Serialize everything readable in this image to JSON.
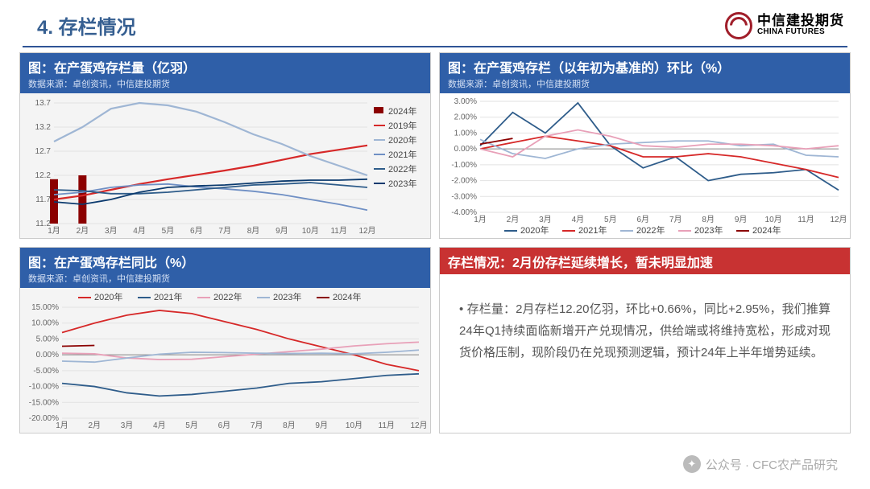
{
  "header": {
    "title": "4. 存栏情况",
    "logo_zh": "中信建投期货",
    "logo_en": "CHINA FUTURES"
  },
  "charts": {
    "tl": {
      "title": "图：在产蛋鸡存栏量（亿羽）",
      "source": "数据来源：卓创资讯，中信建投期货",
      "x_labels": [
        "1月",
        "2月",
        "3月",
        "4月",
        "5月",
        "6月",
        "7月",
        "8月",
        "9月",
        "10月",
        "11月",
        "12月"
      ],
      "y_labels": [
        "11.2",
        "11.7",
        "12.2",
        "12.7",
        "13.2",
        "13.7"
      ],
      "ylim": [
        11.2,
        13.7
      ],
      "legend": [
        {
          "label": "2024年",
          "color": "#8b0000",
          "type": "bar"
        },
        {
          "label": "2019年",
          "color": "#d62828",
          "type": "line"
        },
        {
          "label": "2020年",
          "color": "#9fb6d4",
          "type": "line"
        },
        {
          "label": "2021年",
          "color": "#6f8fc4",
          "type": "line"
        },
        {
          "label": "2022年",
          "color": "#2e5c8a",
          "type": "line"
        },
        {
          "label": "2023年",
          "color": "#0b3a6e",
          "type": "line"
        }
      ],
      "series": {
        "2019": [
          11.7,
          11.78,
          11.9,
          12.02,
          12.12,
          12.21,
          12.3,
          12.4,
          12.52,
          12.64,
          12.73,
          12.82
        ],
        "2020": [
          12.9,
          13.2,
          13.58,
          13.7,
          13.65,
          13.52,
          13.3,
          13.05,
          12.85,
          12.6,
          12.4,
          12.2
        ],
        "2021": [
          11.8,
          11.85,
          11.95,
          12.0,
          12.02,
          11.96,
          11.92,
          11.87,
          11.8,
          11.7,
          11.6,
          11.48
        ],
        "2022": [
          11.9,
          11.88,
          11.82,
          11.82,
          11.85,
          11.9,
          11.95,
          12.0,
          12.02,
          12.05,
          12.0,
          11.95
        ],
        "2023": [
          11.65,
          11.6,
          11.7,
          11.85,
          11.95,
          11.98,
          12.0,
          12.04,
          12.08,
          12.1,
          12.1,
          12.12
        ],
        "2024_bars": [
          12.12,
          12.2
        ]
      },
      "bar_color": "#8b0000",
      "bg_color": "#f4f4f4"
    },
    "tr": {
      "title": "图：在产蛋鸡存栏（以年初为基准的）环比（%）",
      "source": "数据来源：卓创资讯，中信建投期货",
      "x_labels": [
        "1月",
        "2月",
        "3月",
        "4月",
        "5月",
        "6月",
        "7月",
        "8月",
        "9月",
        "10月",
        "11月",
        "12月"
      ],
      "y_labels": [
        "-4.00%",
        "-3.00%",
        "-2.00%",
        "-1.00%",
        "0.00%",
        "1.00%",
        "2.00%",
        "3.00%"
      ],
      "ylim": [
        -4.0,
        3.0
      ],
      "legend": [
        {
          "label": "2020年",
          "color": "#2e5c8a"
        },
        {
          "label": "2021年",
          "color": "#d62828"
        },
        {
          "label": "2022年",
          "color": "#9fb6d4"
        },
        {
          "label": "2023年",
          "color": "#e8a0b8"
        },
        {
          "label": "2024年",
          "color": "#8b0000"
        }
      ],
      "series": {
        "2020": [
          0.2,
          2.3,
          1.0,
          2.9,
          0.2,
          -1.2,
          -0.5,
          -2.0,
          -1.6,
          -1.5,
          -1.3,
          -2.6
        ],
        "2021": [
          0.0,
          0.4,
          0.8,
          0.5,
          0.2,
          -0.5,
          -0.5,
          -0.3,
          -0.5,
          -0.9,
          -1.3,
          -1.8
        ],
        "2022": [
          0.6,
          -0.3,
          -0.6,
          0.0,
          0.3,
          0.4,
          0.5,
          0.5,
          0.2,
          0.3,
          -0.4,
          -0.5
        ],
        "2023": [
          0.0,
          -0.5,
          0.8,
          1.2,
          0.8,
          0.2,
          0.1,
          0.3,
          0.3,
          0.2,
          0.0,
          0.2
        ],
        "2024": [
          0.3,
          0.66
        ]
      },
      "bg_color": "#ffffff"
    },
    "bl": {
      "title": "图：在产蛋鸡存栏同比（%）",
      "source": "数据来源：卓创资讯，中信建投期货",
      "x_labels": [
        "1月",
        "2月",
        "3月",
        "4月",
        "5月",
        "6月",
        "7月",
        "8月",
        "9月",
        "10月",
        "11月",
        "12月"
      ],
      "y_labels": [
        "-20.00%",
        "-15.00%",
        "-10.00%",
        "-5.00%",
        "0.00%",
        "5.00%",
        "10.00%",
        "15.00%"
      ],
      "ylim": [
        -20.0,
        15.0
      ],
      "legend": [
        {
          "label": "2020年",
          "color": "#d62828"
        },
        {
          "label": "2021年",
          "color": "#2e5c8a"
        },
        {
          "label": "2022年",
          "color": "#e8a0b8"
        },
        {
          "label": "2023年",
          "color": "#9fb6d4"
        },
        {
          "label": "2024年",
          "color": "#8b0000"
        }
      ],
      "series": {
        "2020": [
          7.0,
          10.0,
          12.5,
          14.0,
          13.0,
          10.5,
          8.0,
          5.0,
          2.5,
          0.0,
          -3.0,
          -5.0
        ],
        "2021": [
          -9.0,
          -10.0,
          -12.0,
          -13.0,
          -12.5,
          -11.5,
          -10.5,
          -9.0,
          -8.5,
          -7.5,
          -6.5,
          -6.0
        ],
        "2022": [
          0.5,
          0.3,
          -1.0,
          -1.5,
          -1.4,
          -0.6,
          0.2,
          1.0,
          1.8,
          2.8,
          3.5,
          4.0
        ],
        "2023": [
          -2.0,
          -2.3,
          -1.0,
          0.2,
          0.8,
          0.7,
          0.5,
          0.4,
          0.5,
          0.3,
          0.8,
          1.5
        ],
        "2024": [
          2.7,
          2.95
        ]
      },
      "bg_color": "#f4f4f4"
    }
  },
  "commentary_panel": {
    "title": "存栏情况：2月份存栏延续增长，暂未明显加速",
    "body": "存栏量：2月存栏12.20亿羽，环比+0.66%，同比+2.95%，我们推算24年Q1持续面临新增开产兑现情况，供给端或将维持宽松，形成对现货价格压制，现阶段仍在兑现预测逻辑，预计24年上半年增势延续。"
  },
  "watermark": "公众号 · CFC农产品研究"
}
